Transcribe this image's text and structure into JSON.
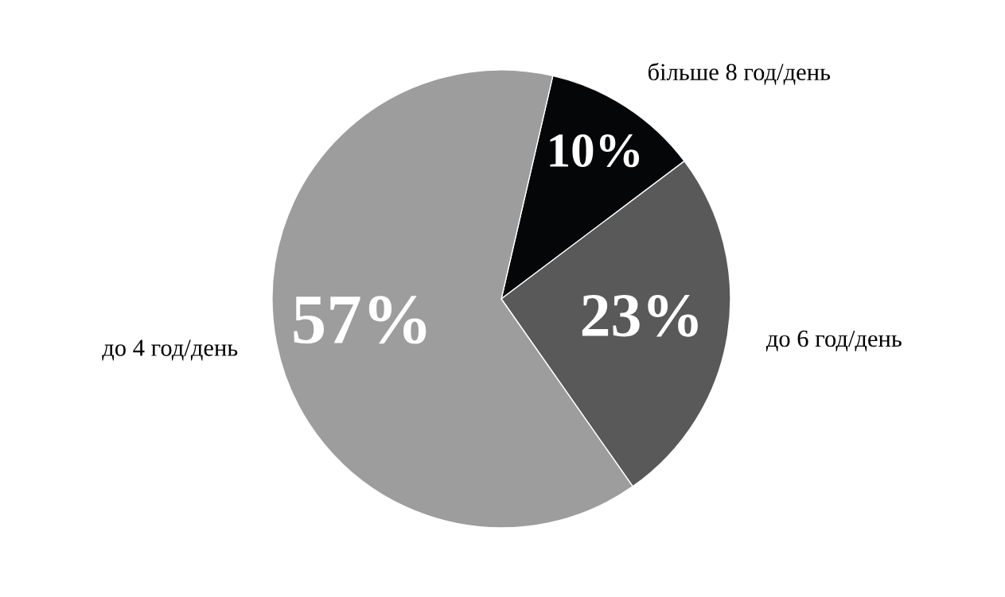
{
  "chart_data": {
    "type": "pie",
    "categories": [
      "більше 8 год/день",
      "до 6 год/день",
      "до 4 год/день"
    ],
    "values": [
      10,
      23,
      57
    ],
    "colors": [
      "#050608",
      "#595959",
      "#9d9d9d"
    ],
    "value_labels": [
      "10%",
      "23%",
      "57%"
    ]
  }
}
